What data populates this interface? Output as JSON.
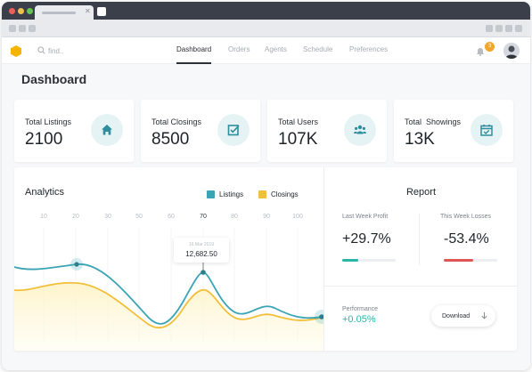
{
  "search": {
    "placeholder": "find.."
  },
  "nav": {
    "items": [
      {
        "label": "Dashboard"
      },
      {
        "label": "Orders"
      },
      {
        "label": "Agents"
      },
      {
        "label": "Schedule"
      },
      {
        "label": "Preferences"
      }
    ]
  },
  "notifications": {
    "count": "3"
  },
  "page": {
    "title": "Dashboard"
  },
  "stats": [
    {
      "label": "Total Listings",
      "value": "2100",
      "icon": "home-icon"
    },
    {
      "label": "Total Closings",
      "value": "8500",
      "icon": "checkbox-icon"
    },
    {
      "label": "Total Users",
      "value": "107K",
      "icon": "users-icon"
    },
    {
      "label": "Total  Showings",
      "value": "13K",
      "icon": "calendar-icon"
    }
  ],
  "analytics": {
    "title": "Analytics",
    "legend": [
      {
        "label": "Listings",
        "color": "#3aa4b4"
      },
      {
        "label": "Closings",
        "color": "#f2bf3a"
      }
    ],
    "tooltip": {
      "date": "16 Mar 2019",
      "value": "12,682.50"
    }
  },
  "chart_data": {
    "type": "line",
    "x": [
      "10",
      "20",
      "30",
      "50",
      "60",
      "70",
      "80",
      "90",
      "100"
    ],
    "active_tick": "70",
    "series": [
      {
        "name": "Listings",
        "color": "#3aa4b4"
      },
      {
        "name": "Closings",
        "color": "#f2bf3a"
      }
    ],
    "grid": false,
    "legend": "top-right"
  },
  "report": {
    "title": "Report",
    "last_week": {
      "label": "Last Week Profit",
      "value": "+29.7%",
      "color": "#2cb6a8",
      "progress": 0.3
    },
    "this_week": {
      "label": "This Week Losses",
      "value": "-53.4%",
      "color": "#e05555",
      "progress": 0.55
    },
    "performance": {
      "label": "Performance",
      "value": "+0.05%"
    },
    "download_label": "Download"
  }
}
